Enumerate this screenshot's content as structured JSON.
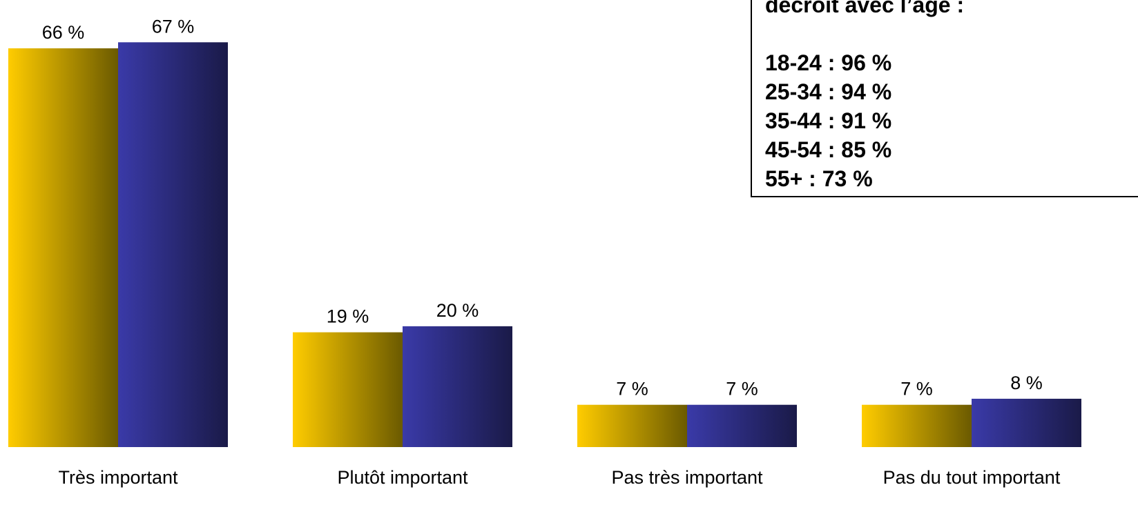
{
  "chart_data": {
    "type": "bar",
    "categories": [
      "Très important",
      "Plutôt important",
      "Pas très important",
      "Pas du tout important"
    ],
    "series": [
      {
        "values": [
          66,
          19,
          7,
          7
        ],
        "labels": [
          "66 %",
          "19 %",
          "7 %",
          "7 %"
        ],
        "color_start": "#FFCC00",
        "color_end": "#6B5A00"
      },
      {
        "values": [
          67,
          20,
          7,
          8
        ],
        "labels": [
          "67 %",
          "20 %",
          "7 %",
          "8 %"
        ],
        "color_start": "#3A3AA8",
        "color_end": "#1A1A48"
      }
    ],
    "ylim": [
      0,
      74
    ],
    "grid": false,
    "legend": "none"
  },
  "note": {
    "title": "décroît avec l’âge :",
    "items": [
      "18-24 : 96 %",
      "25-34 : 94 %",
      "35-44 : 91 %",
      "45-54 : 85 %",
      "55+ : 73 %"
    ]
  }
}
